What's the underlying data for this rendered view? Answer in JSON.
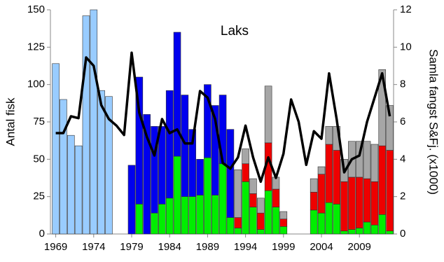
{
  "chart_data": {
    "type": "bar",
    "title": "Laks",
    "y_label": "Antal fisk",
    "y2_label": "Samla fangst S&Fj. (x1000)",
    "x": [
      1969,
      1970,
      1971,
      1972,
      1973,
      1974,
      1975,
      1976,
      1977,
      1978,
      1979,
      1980,
      1981,
      1982,
      1983,
      1984,
      1985,
      1986,
      1987,
      1988,
      1989,
      1990,
      1991,
      1992,
      1993,
      1994,
      1995,
      1996,
      1997,
      1998,
      1999,
      2000,
      2001,
      2002,
      2003,
      2004,
      2005,
      2006,
      2007,
      2008,
      2009,
      2010,
      2011,
      2012,
      2013
    ],
    "xlim": [
      1968.3,
      2013.5
    ],
    "xticks": [
      1969,
      1974,
      1979,
      1984,
      1989,
      1994,
      1999,
      2004,
      2009
    ],
    "ylim": [
      0,
      150
    ],
    "yticks": [
      0,
      25,
      50,
      75,
      100,
      125,
      150
    ],
    "y2lim": [
      0,
      12
    ],
    "y2ticks": [
      0,
      2,
      4,
      6,
      8,
      10,
      12
    ],
    "stacked": true,
    "grid": false,
    "series": [
      {
        "color": "#99ccff",
        "values": [
          114,
          90,
          66,
          59,
          146,
          150,
          96,
          92,
          null,
          null,
          null,
          null,
          null,
          null,
          null,
          null,
          null,
          null,
          null,
          null,
          null,
          null,
          null,
          null,
          null,
          null,
          null,
          null,
          null,
          null,
          null,
          null,
          null,
          null,
          null,
          null,
          null,
          null,
          null,
          null,
          null,
          null,
          null,
          null,
          null
        ]
      },
      {
        "color": "#00ee00",
        "values": [
          null,
          null,
          null,
          null,
          null,
          null,
          null,
          null,
          null,
          null,
          null,
          20,
          null,
          14,
          20,
          24,
          52,
          25,
          25,
          26,
          51,
          26,
          47,
          11,
          4,
          35,
          18,
          3,
          29,
          18,
          5,
          null,
          null,
          null,
          16,
          14,
          21,
          20,
          2,
          3,
          4,
          8,
          6,
          13,
          2
        ]
      },
      {
        "color": "#0000ee",
        "values": [
          null,
          null,
          null,
          null,
          null,
          null,
          null,
          null,
          null,
          null,
          46,
          85,
          80,
          58,
          52,
          72,
          83,
          68,
          45,
          24,
          49,
          60,
          46,
          59,
          null,
          null,
          null,
          null,
          null,
          null,
          null,
          null,
          null,
          null,
          null,
          null,
          null,
          null,
          null,
          null,
          null,
          null,
          null,
          null,
          null
        ]
      },
      {
        "color": "#ee0000",
        "values": [
          null,
          null,
          null,
          null,
          null,
          null,
          null,
          null,
          null,
          null,
          null,
          null,
          null,
          null,
          null,
          null,
          null,
          null,
          null,
          null,
          null,
          null,
          null,
          null,
          7,
          12,
          9,
          11,
          32,
          12,
          5,
          null,
          null,
          null,
          12,
          26,
          39,
          36,
          33,
          35,
          34,
          29,
          29,
          46,
          54
        ]
      },
      {
        "color": "#a6a6a6",
        "values": [
          null,
          null,
          null,
          null,
          null,
          null,
          null,
          null,
          null,
          null,
          null,
          null,
          null,
          null,
          null,
          null,
          null,
          null,
          null,
          null,
          null,
          null,
          null,
          null,
          32,
          10,
          10,
          10,
          38,
          8,
          5,
          null,
          null,
          null,
          9,
          5,
          12,
          16,
          15,
          24,
          24,
          25,
          25,
          51,
          30
        ]
      },
      {
        "type": "line",
        "axis": "y2",
        "color": "#000000",
        "values": [
          5.4,
          5.4,
          6.3,
          6.2,
          9.45,
          9.0,
          6.9,
          6.15,
          5.8,
          5.3,
          9.7,
          6.5,
          5.2,
          4.2,
          6.15,
          5.4,
          5.6,
          4.85,
          4.85,
          7.65,
          7.3,
          6.15,
          3.8,
          3.5,
          4.1,
          5.8,
          4.1,
          2.8,
          4.1,
          3.0,
          4.3,
          7.2,
          6.0,
          3.7,
          5.5,
          5.1,
          8.6,
          6.15,
          3.3,
          4.0,
          4.2,
          6.0,
          7.3,
          8.6,
          6.3
        ]
      }
    ]
  }
}
